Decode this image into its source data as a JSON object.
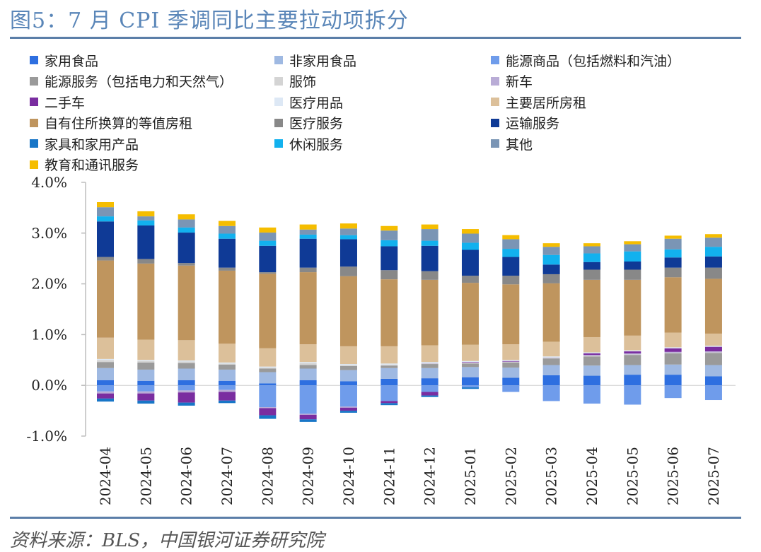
{
  "figure_title": "图5：7 月 CPI 季调同比主要拉动项拆分",
  "source": "资料来源：BLS，中国银河证券研究院",
  "chart_data": {
    "type": "bar",
    "stacked": true,
    "ylim": [
      -1.0,
      4.0
    ],
    "yticks": [
      "4.0%",
      "3.0%",
      "2.0%",
      "1.0%",
      "0.0%",
      "-1.0%"
    ],
    "ytick_values": [
      4.0,
      3.0,
      2.0,
      1.0,
      0.0,
      -1.0
    ],
    "legend_position": "top",
    "grid": false,
    "categories": [
      "2024-04",
      "2024-05",
      "2024-06",
      "2024-07",
      "2024-08",
      "2024-09",
      "2024-10",
      "2024-11",
      "2024-12",
      "2025-01",
      "2025-02",
      "2025-03",
      "2025-04",
      "2025-05",
      "2025-06",
      "2025-07"
    ],
    "series": [
      {
        "name": "家用食品",
        "color": "#2e6fe0",
        "values": [
          0.1,
          0.09,
          0.1,
          0.09,
          0.04,
          0.1,
          0.08,
          0.13,
          0.14,
          0.16,
          0.15,
          0.2,
          0.19,
          0.21,
          0.21,
          0.18
        ]
      },
      {
        "name": "非家用食品",
        "color": "#9fb9e2",
        "values": [
          0.24,
          0.22,
          0.23,
          0.22,
          0.22,
          0.23,
          0.22,
          0.21,
          0.2,
          0.2,
          0.2,
          0.2,
          0.2,
          0.19,
          0.2,
          0.22
        ]
      },
      {
        "name": "能源商品（包括燃料和汽油）",
        "color": "#6f9ceb",
        "values": [
          -0.12,
          -0.12,
          -0.1,
          -0.09,
          -0.43,
          -0.56,
          -0.42,
          -0.31,
          -0.13,
          -0.04,
          -0.13,
          -0.31,
          -0.36,
          -0.38,
          -0.25,
          -0.29
        ]
      },
      {
        "name": "能源服务（包括电力和天然气）",
        "color": "#9a9a9a",
        "values": [
          0.12,
          0.14,
          0.11,
          0.1,
          0.07,
          0.07,
          0.08,
          0.05,
          0.08,
          0.07,
          0.1,
          0.13,
          0.18,
          0.2,
          0.22,
          0.24
        ]
      },
      {
        "name": "服饰",
        "color": "#d4d4d4",
        "values": [
          0.04,
          0.03,
          0.03,
          0.02,
          0.02,
          0.04,
          0.02,
          0.02,
          0.01,
          0.01,
          0.01,
          0.01,
          0.01,
          0.01,
          0.01,
          0.01
        ]
      },
      {
        "name": "新车",
        "color": "#b9acd6",
        "values": [
          -0.04,
          -0.04,
          -0.04,
          -0.04,
          -0.02,
          -0.02,
          -0.02,
          0.0,
          0.01,
          0.01,
          0.01,
          0.01,
          0.02,
          0.02,
          0.02,
          0.02
        ]
      },
      {
        "name": "二手车",
        "color": "#7a2da0",
        "values": [
          -0.1,
          -0.14,
          -0.2,
          -0.17,
          -0.14,
          -0.09,
          -0.06,
          -0.04,
          -0.07,
          0.01,
          0.01,
          0.0,
          0.03,
          0.04,
          0.07,
          0.09
        ]
      },
      {
        "name": "医疗用品",
        "color": "#dde8f5",
        "values": [
          0.02,
          0.02,
          0.02,
          0.02,
          0.02,
          0.02,
          0.02,
          0.02,
          0.02,
          0.02,
          0.02,
          0.02,
          0.02,
          0.02,
          0.02,
          0.02
        ]
      },
      {
        "name": "主要居所房租",
        "color": "#dcc09a",
        "values": [
          0.42,
          0.4,
          0.4,
          0.37,
          0.36,
          0.35,
          0.35,
          0.34,
          0.33,
          0.32,
          0.31,
          0.29,
          0.3,
          0.29,
          0.29,
          0.24
        ]
      },
      {
        "name": "自有住所换算的等值房租",
        "color": "#bf955e",
        "values": [
          1.52,
          1.5,
          1.47,
          1.44,
          1.47,
          1.42,
          1.38,
          1.32,
          1.29,
          1.22,
          1.18,
          1.15,
          1.13,
          1.1,
          1.09,
          1.08
        ]
      },
      {
        "name": "医疗服务",
        "color": "#888888",
        "values": [
          0.07,
          0.09,
          0.05,
          0.06,
          0.03,
          0.09,
          0.19,
          0.18,
          0.17,
          0.14,
          0.17,
          0.18,
          0.2,
          0.2,
          0.19,
          0.22
        ]
      },
      {
        "name": "运输服务",
        "color": "#0f3a96",
        "values": [
          0.7,
          0.66,
          0.6,
          0.57,
          0.52,
          0.57,
          0.54,
          0.47,
          0.5,
          0.51,
          0.37,
          0.19,
          0.15,
          0.16,
          0.2,
          0.22
        ]
      },
      {
        "name": "家具和家用产品",
        "color": "#1876c7",
        "values": [
          -0.06,
          -0.06,
          -0.06,
          -0.05,
          -0.07,
          -0.05,
          -0.04,
          -0.04,
          -0.03,
          -0.03,
          0.0,
          0.0,
          0.0,
          0.0,
          0.0,
          0.0
        ]
      },
      {
        "name": "休闲服务",
        "color": "#12b1ee",
        "values": [
          0.1,
          0.1,
          0.1,
          0.1,
          0.1,
          0.08,
          0.08,
          0.12,
          0.1,
          0.14,
          0.16,
          0.19,
          0.17,
          0.2,
          0.16,
          0.19
        ]
      },
      {
        "name": "其他",
        "color": "#7a95b5",
        "values": [
          0.18,
          0.08,
          0.16,
          0.15,
          0.16,
          0.1,
          0.13,
          0.19,
          0.23,
          0.18,
          0.19,
          0.16,
          0.14,
          0.14,
          0.21,
          0.18
        ]
      },
      {
        "name": "教育和通讯服务",
        "color": "#f5bd00",
        "values": [
          0.1,
          0.1,
          0.1,
          0.1,
          0.1,
          0.1,
          0.1,
          0.09,
          0.09,
          0.09,
          0.08,
          0.07,
          0.06,
          0.06,
          0.06,
          0.07
        ]
      }
    ]
  }
}
